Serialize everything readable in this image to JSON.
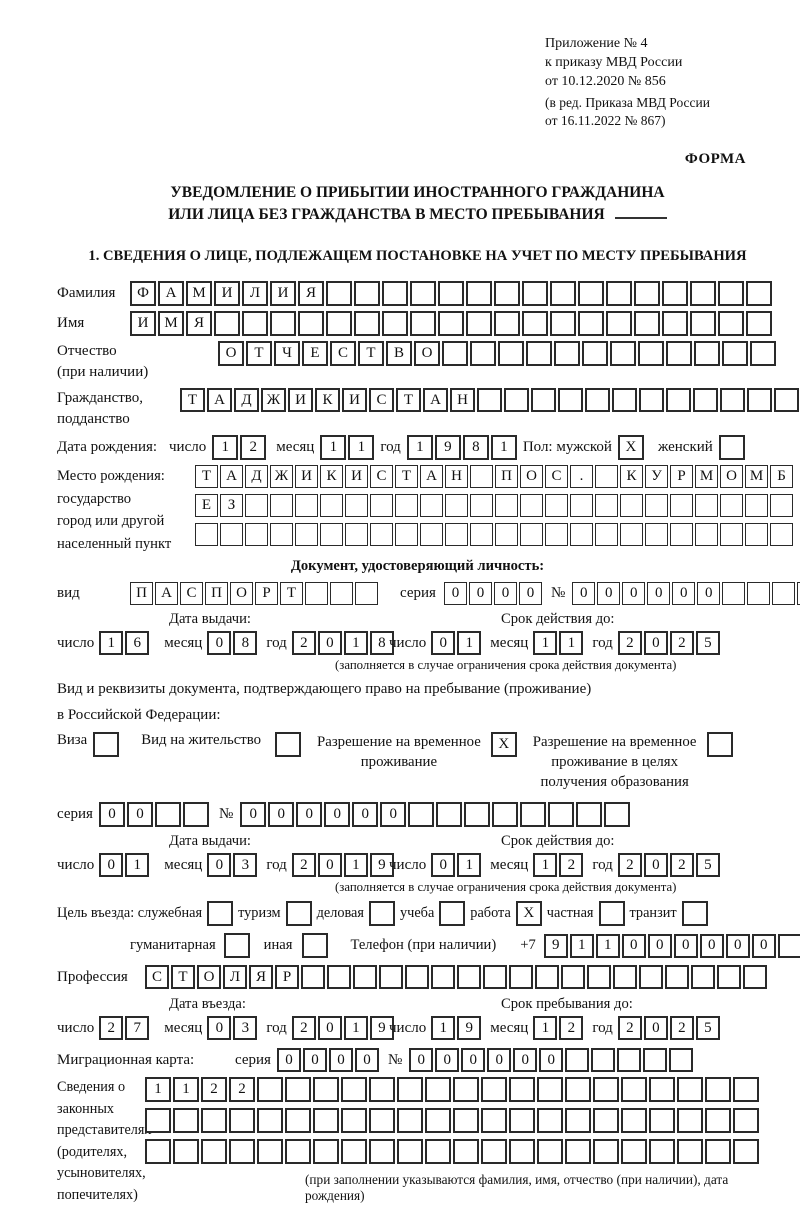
{
  "header": {
    "appendix": [
      "Приложение № 4",
      "к приказу МВД России",
      "от 10.12.2020 № 856"
    ],
    "appendix_note": [
      "(в ред. Приказа МВД России",
      "от 16.11.2022 № 867)"
    ],
    "forma": "ФОРМА"
  },
  "title": {
    "line1": "УВЕДОМЛЕНИЕ О ПРИБЫТИИ ИНОСТРАННОГО ГРАЖДАНИНА",
    "line2": "ИЛИ ЛИЦА БЕЗ ГРАЖДАНСТВА В МЕСТО ПРЕБЫВАНИЯ"
  },
  "section1_heading": "1. СВЕДЕНИЯ О ЛИЦЕ, ПОДЛЕЖАЩЕМ ПОСТАНОВКЕ НА УЧЕТ ПО МЕСТУ ПРЕБЫВАНИЯ",
  "labels": {
    "surname": "Фамилия",
    "given_name": "Имя",
    "patronymic": "Отчество",
    "patronymic_note": "(при наличии)",
    "citizenship1": "Гражданство,",
    "citizenship2": "подданство",
    "birth_date": "Дата рождения:",
    "day": "число",
    "month": "месяц",
    "year": "год",
    "sex_male": "Пол: мужской",
    "sex_female": "женский",
    "birth_place": "Место рождения:",
    "state": "государство",
    "city1": "город или другой",
    "city2": "населенный пункт",
    "id_doc_heading": "Документ, удостоверяющий личность:",
    "doc_type": "вид",
    "series": "серия",
    "number_sign": "№",
    "issue_date": "Дата выдачи:",
    "valid_until": "Срок действия до:",
    "validity_note": "(заполняется в случае ограничения срока действия документа)",
    "stay_doc_line1": "Вид и реквизиты документа, подтверждающего право на пребывание (проживание)",
    "stay_doc_line2": "в Российской Федерации:",
    "visa": "Виза",
    "residence_permit": "Вид на жительство",
    "temp_residence_l1": "Разрешение на временное",
    "temp_residence_l2": "проживание",
    "temp_edu_l1": "Разрешение на временное",
    "temp_edu_l2": "проживание в целях",
    "temp_edu_l3": "получения образования",
    "purpose": "Цель въезда: служебная",
    "tourism": "туризм",
    "business": "деловая",
    "study": "учеба",
    "work": "работа",
    "private": "частная",
    "transit": "транзит",
    "humanitarian": "гуманитарная",
    "other": "иная",
    "phone": "Телефон (при наличии)",
    "phone_prefix": "+7",
    "profession": "Профессия",
    "entry_date": "Дата въезда:",
    "stay_until": "Срок пребывания до:",
    "migration_card": "Миграционная карта:",
    "representatives": [
      "Сведения о",
      "законных",
      "представителях",
      "(родителях,",
      "усыновителях,",
      "попечителях)"
    ],
    "representatives_note": "(при заполнении указываются фамилия, имя, отчество (при наличии), дата рождения)"
  },
  "fields": {
    "surname": {
      "value": "ФАМИЛИЯ",
      "count": 23
    },
    "given_name": {
      "value": "ИМЯ",
      "count": 23
    },
    "patronymic": {
      "value": "ОТЧЕСТВО",
      "count": 20
    },
    "citizenship": {
      "value": "ТАДЖИКИСТАН",
      "count": 23
    },
    "birth_day": {
      "value": "12",
      "count": 2
    },
    "birth_month": {
      "value": "11",
      "count": 2
    },
    "birth_year": {
      "value": "1981",
      "count": 4
    },
    "sex_male": {
      "value": "X",
      "count": 1
    },
    "sex_female": {
      "value": "",
      "count": 1
    },
    "birth_place_row1": {
      "value": "ТАДЖИКИСТАН ПОС. КУРМОМБ",
      "count": 24
    },
    "birth_place_row2": {
      "value": "ЕЗ",
      "count": 24
    },
    "birth_place_row3": {
      "value": "",
      "count": 24
    },
    "id_doc_type": {
      "value": "ПАСПОРТ",
      "count": 10
    },
    "id_doc_series": {
      "value": "0000",
      "count": 4
    },
    "id_doc_number": {
      "value": "000000",
      "count": 11
    },
    "id_issue_day": {
      "value": "16",
      "count": 2
    },
    "id_issue_month": {
      "value": "08",
      "count": 2
    },
    "id_issue_year": {
      "value": "2018",
      "count": 4
    },
    "id_expiry_day": {
      "value": "01",
      "count": 2
    },
    "id_expiry_month": {
      "value": "11",
      "count": 2
    },
    "id_expiry_year": {
      "value": "2025",
      "count": 4
    },
    "visa_checkbox": {
      "value": "",
      "count": 1
    },
    "residence_permit_checkbox": {
      "value": "",
      "count": 1
    },
    "temp_residence_checkbox": {
      "value": "X",
      "count": 1
    },
    "temp_residence_edu_checkbox": {
      "value": "",
      "count": 1
    },
    "stay_doc_series": {
      "value": "00",
      "count": 4
    },
    "stay_doc_number": {
      "value": "000000",
      "count": 14
    },
    "stay_issue_day": {
      "value": "01",
      "count": 2
    },
    "stay_issue_month": {
      "value": "03",
      "count": 2
    },
    "stay_issue_year": {
      "value": "2019",
      "count": 4
    },
    "stay_expiry_day": {
      "value": "01",
      "count": 2
    },
    "stay_expiry_month": {
      "value": "12",
      "count": 2
    },
    "stay_expiry_year": {
      "value": "2025",
      "count": 4
    },
    "purpose_official": {
      "value": "",
      "count": 1
    },
    "purpose_tourism": {
      "value": "",
      "count": 1
    },
    "purpose_business": {
      "value": "",
      "count": 1
    },
    "purpose_study": {
      "value": "",
      "count": 1
    },
    "purpose_work": {
      "value": "X",
      "count": 1
    },
    "purpose_private": {
      "value": "",
      "count": 1
    },
    "purpose_transit": {
      "value": "",
      "count": 1
    },
    "purpose_humanitarian": {
      "value": "",
      "count": 1
    },
    "purpose_other": {
      "value": "",
      "count": 1
    },
    "phone": {
      "value": "911000000",
      "count": 10
    },
    "profession": {
      "value": "СТОЛЯР",
      "count": 24
    },
    "entry_day": {
      "value": "27",
      "count": 2
    },
    "entry_month": {
      "value": "03",
      "count": 2
    },
    "entry_year": {
      "value": "2019",
      "count": 4
    },
    "stay_until_day": {
      "value": "19",
      "count": 2
    },
    "stay_until_month": {
      "value": "12",
      "count": 2
    },
    "stay_until_year": {
      "value": "2025",
      "count": 4
    },
    "migration_card_series": {
      "value": "0000",
      "count": 4
    },
    "migration_card_number": {
      "value": "000000",
      "count": 11
    },
    "representatives_row1": {
      "value": "1122",
      "count": 22
    },
    "representatives_row2": {
      "value": "",
      "count": 22
    },
    "representatives_row3": {
      "value": "",
      "count": 22
    }
  }
}
